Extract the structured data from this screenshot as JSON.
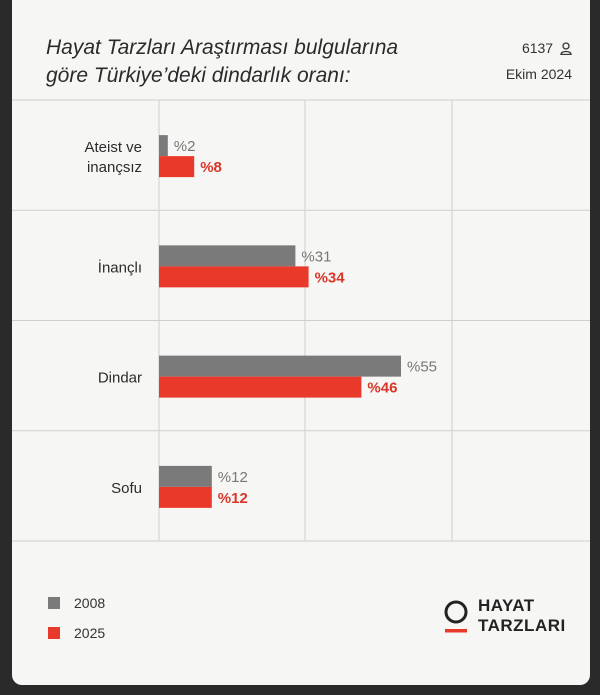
{
  "header": {
    "title_line1": "Hayat Tarzları Araştırması bulgularına",
    "title_line2": "göre Türkiye’deki dindarlık oranı:",
    "sample_count": "6137",
    "date": "Ekim 2024",
    "sample_icon": "user-icon"
  },
  "colors": {
    "series_2008": "#7a7a7a",
    "series_2025": "#e8392a",
    "label_2008": "#777777",
    "label_2025": "#d9362a",
    "grid": "#cfcfcf"
  },
  "chart_data": {
    "type": "bar",
    "orientation": "horizontal",
    "categories": [
      "Ateist ve inançsız",
      "İnançlı",
      "Dindar",
      "Sofu"
    ],
    "category_lines": [
      [
        "Ateist ve",
        "inançsız"
      ],
      [
        "İnançlı"
      ],
      [
        "Dindar"
      ],
      [
        "Sofu"
      ]
    ],
    "series": [
      {
        "name": "2008",
        "values": [
          2,
          31,
          55,
          12
        ],
        "labels": [
          "%2",
          "%31",
          "%55",
          "%12"
        ]
      },
      {
        "name": "2025",
        "values": [
          8,
          34,
          46,
          12
        ],
        "labels": [
          "%8",
          "%34",
          "%46",
          "%12"
        ]
      }
    ],
    "xlim": [
      0,
      100
    ],
    "grid": true,
    "legend_position": "bottom-left"
  },
  "legend": [
    {
      "label": "2008"
    },
    {
      "label": "2025"
    }
  ],
  "logo": {
    "line1": "HAYAT",
    "line2": "TARZLARI"
  }
}
